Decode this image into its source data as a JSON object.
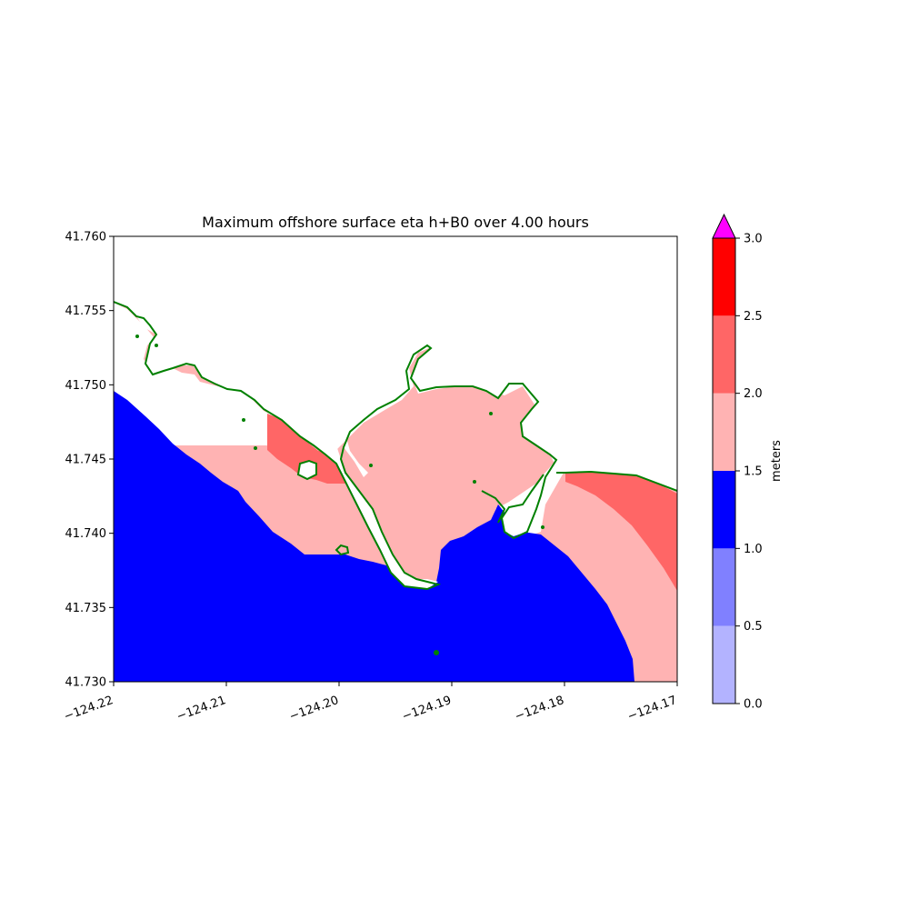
{
  "chart_data": {
    "type": "heatmap",
    "title": "Maximum offshore surface eta h+B0 over 4.00 hours",
    "xlim": [
      -124.22,
      -124.17
    ],
    "ylim": [
      41.73,
      41.76
    ],
    "x_ticks": [
      "−124.22",
      "−124.21",
      "−124.20",
      "−124.19",
      "−124.18",
      "−124.17"
    ],
    "x_tick_values": [
      -124.22,
      -124.21,
      -124.2,
      -124.19,
      -124.18,
      -124.17
    ],
    "y_ticks": [
      "41.730",
      "41.735",
      "41.740",
      "41.745",
      "41.750",
      "41.755",
      "41.760"
    ],
    "y_tick_values": [
      41.73,
      41.735,
      41.74,
      41.745,
      41.75,
      41.755,
      41.76
    ],
    "colorbar": {
      "label": "meters",
      "ticks": [
        "0.0",
        "0.5",
        "1.0",
        "1.5",
        "2.0",
        "2.5",
        "3.0"
      ],
      "tick_values": [
        0,
        0.5,
        1.0,
        1.5,
        2.0,
        2.5,
        3.0
      ],
      "bins": [
        {
          "min": 0.0,
          "max": 0.5,
          "color": "#b3b3ff"
        },
        {
          "min": 0.5,
          "max": 1.0,
          "color": "#8080ff"
        },
        {
          "min": 1.0,
          "max": 1.5,
          "color": "#0000ff"
        },
        {
          "min": 1.5,
          "max": 2.0,
          "color": "#ffb3b3"
        },
        {
          "min": 2.0,
          "max": 2.5,
          "color": "#ff6666"
        },
        {
          "min": 2.5,
          "max": 3.0,
          "color": "#ff0000"
        }
      ],
      "extend_max_color": "#ff00ff"
    },
    "shoreline_color": "#008000"
  }
}
